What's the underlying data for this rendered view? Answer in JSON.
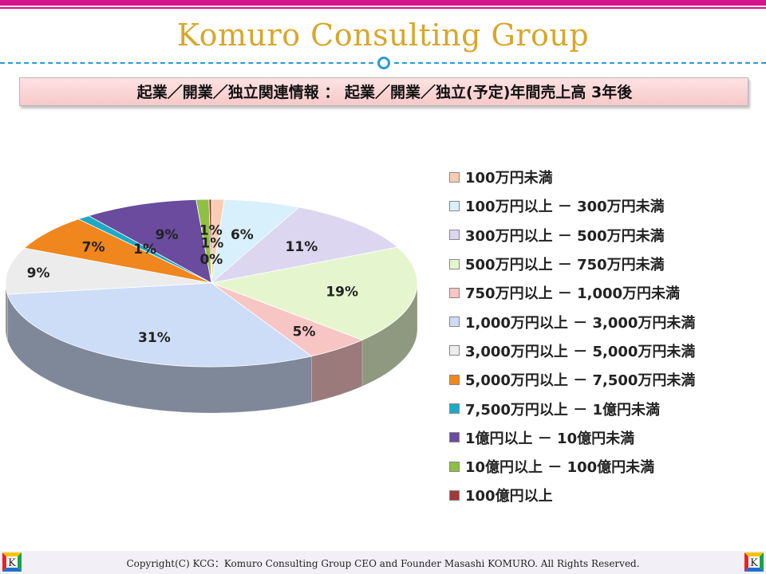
{
  "header": {
    "brand": "Komuro Consulting Group",
    "title": "起業／開業／独立関連情報 ： 起業／開業／独立(予定)年間売上高 3年後"
  },
  "footer": {
    "copyright": "Copyright(C) KCG：Komuro Consulting Group CEO and Founder Masashi KOMURO. All Rights Reserved.",
    "logo_letter": "K"
  },
  "chart_data": {
    "type": "pie",
    "title": "",
    "legend_position": "right",
    "slices": [
      {
        "label": "100万円未満",
        "value": 1,
        "color": "#f9cdb4"
      },
      {
        "label": "100万円以上 － 300万円未満",
        "value": 6,
        "color": "#d8f0fb"
      },
      {
        "label": "300万円以上 － 500万円未満",
        "value": 11,
        "color": "#ddd6f0"
      },
      {
        "label": "500万円以上 － 750万円未満",
        "value": 19,
        "color": "#e5f6cf"
      },
      {
        "label": "750万円以上 － 1,000万円未満",
        "value": 5,
        "color": "#f8c5c5"
      },
      {
        "label": "1,000万円以上 － 3,000万円未満",
        "value": 31,
        "color": "#cddcf7"
      },
      {
        "label": "3,000万円以上 － 5,000万円未満",
        "value": 9,
        "color": "#ececec"
      },
      {
        "label": "5,000万円以上 － 7,500万円未満",
        "value": 7,
        "color": "#f0861e"
      },
      {
        "label": "7,500万円以上 － 1億円未満",
        "value": 1,
        "color": "#1fa9c4"
      },
      {
        "label": "1億円以上 － 10億円未満",
        "value": 9,
        "color": "#6a4b9e"
      },
      {
        "label": "10億円以上 － 100億円未満",
        "value": 1,
        "color": "#8fbf45"
      },
      {
        "label": "100億円以上",
        "value": 0,
        "color": "#a03a3a"
      }
    ],
    "data_labels": [
      "1%",
      "6%",
      "11%",
      "19%",
      "5%",
      "31%",
      "9%",
      "7%",
      "1%",
      "9%",
      "1%",
      "0%"
    ]
  }
}
